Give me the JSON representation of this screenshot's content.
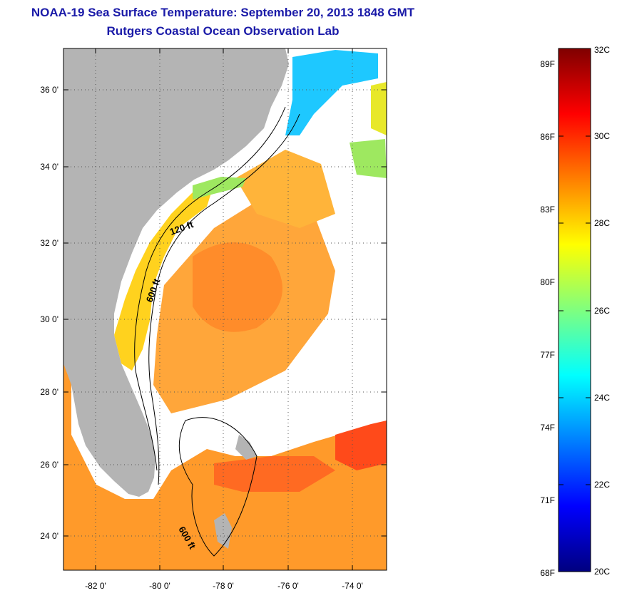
{
  "title_line1": "NOAA-19 Sea Surface Temperature:  September 20, 2013 1848 GMT",
  "title_line2": "Rutgers Coastal Ocean Observation Lab",
  "map": {
    "lat_labels": [
      "36 0'",
      "34 0'",
      "32 0'",
      "30 0'",
      "28 0'",
      "26 0'",
      "24 0'"
    ],
    "lon_labels": [
      "-82 0'",
      "-80 0'",
      "-78 0'",
      "-76 0'",
      "-74 0'"
    ],
    "contour_labels": [
      "120 ft",
      "600 ft",
      "600 ft"
    ],
    "land_color": "#b4b4b4",
    "no_data_color": "#ffffff"
  },
  "colorbar": {
    "celsius_labels": [
      "32C",
      "30C",
      "28C",
      "26C",
      "24C",
      "22C",
      "20C"
    ],
    "fahrenheit_labels": [
      "89F",
      "86F",
      "83F",
      "80F",
      "77F",
      "74F",
      "71F",
      "68F"
    ],
    "range_c": [
      20,
      32
    ],
    "colors": [
      "#00007f",
      "#0000ff",
      "#007fff",
      "#00ffff",
      "#7fff7f",
      "#ffff00",
      "#ff7f00",
      "#ff0000",
      "#7f0000"
    ]
  }
}
